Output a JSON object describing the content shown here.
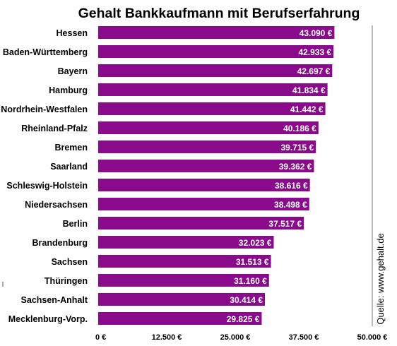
{
  "chart_data": {
    "type": "bar",
    "orientation": "horizontal",
    "title": "Gehalt Bankkaufmann mit Berufserfahrung",
    "source": "Quelle: www.gehalt.de",
    "bar_color": "#8a0a8c",
    "xlim": [
      0,
      50000
    ],
    "grid": false,
    "categories": [
      "Hessen",
      "Baden-Württemberg",
      "Bayern",
      "Hamburg",
      "Nordrhein-Westfalen",
      "Rheinland-Pfalz",
      "Bremen",
      "Saarland",
      "Schleswig-Holstein",
      "Niedersachsen",
      "Berlin",
      "Brandenburg",
      "Sachsen",
      "Thüringen",
      "Sachsen-Anhalt",
      "Mecklenburg-Vorp."
    ],
    "values": [
      43090,
      42933,
      42697,
      41834,
      41442,
      40186,
      39715,
      39362,
      38616,
      38498,
      37517,
      32023,
      31513,
      31160,
      30414,
      29825
    ],
    "value_labels": [
      "43.090 €",
      "42.933 €",
      "42.697 €",
      "41.834 €",
      "41.442 €",
      "40.186 €",
      "39.715 €",
      "39.362 €",
      "38.616 €",
      "38.498 €",
      "37.517 €",
      "32.023 €",
      "31.513 €",
      "31.160 €",
      "30.414 €",
      "29.825 €"
    ],
    "x_ticks": [
      0,
      12500,
      25000,
      37500,
      50000
    ],
    "x_tick_labels": [
      "0 €",
      "12.500 €",
      "25.000 €",
      "37.500 €",
      "50.000 €"
    ]
  }
}
